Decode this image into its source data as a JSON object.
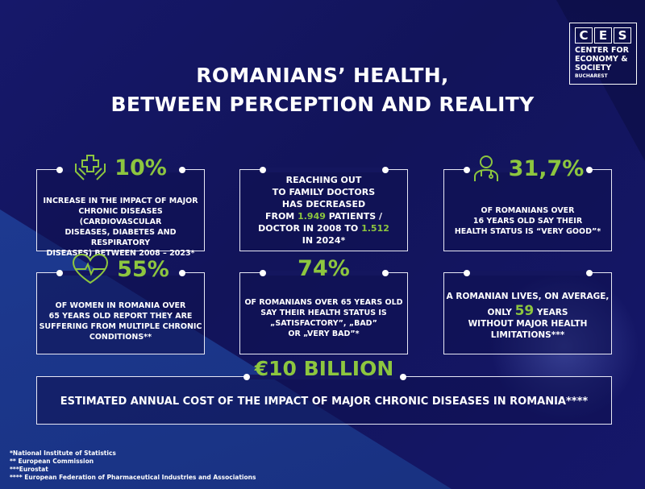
{
  "title": {
    "line1": "ROMANIANS’ HEALTH,",
    "line2": "BETWEEN PERCEPTION AND REALITY"
  },
  "logo": {
    "letters": [
      "C",
      "E",
      "S"
    ],
    "line1": "CENTER FOR",
    "line2": "ECONOMY &",
    "line3": "SOCIETY",
    "city": "BUCHAREST"
  },
  "colors": {
    "accent": "#8dc63f",
    "background": "#14165e"
  },
  "cards": [
    {
      "icon": "hands-medical-cross-icon",
      "value": "10%",
      "text": [
        "INCREASE IN THE IMPACT OF MAJOR",
        "CHRONIC DISEASES (CARDIOVASCULAR",
        "DISEASES, DIABETES AND RESPIRATORY",
        "DISEASES) BETWEEN 2008 – 2023*"
      ]
    },
    {
      "lines": [
        "REACHING OUT",
        "TO FAMILY DOCTORS",
        "HAS DECREASED"
      ],
      "from_pre": "FROM ",
      "from_val": "1.949",
      "from_post": " PATIENTS /",
      "to_pre": "DOCTOR IN 2008 TO ",
      "to_val": "1.512",
      "end": "IN 2024*"
    },
    {
      "icon": "doctor-icon",
      "value": "31,7%",
      "text": [
        "OF ROMANIANS OVER",
        "16 YEARS OLD SAY THEIR",
        "HEALTH STATUS IS “VERY GOOD”*"
      ]
    },
    {
      "icon": "heart-pulse-icon",
      "value": "55%",
      "text": [
        "OF WOMEN IN ROMANIA OVER",
        "65 YEARS OLD REPORT THEY ARE",
        "SUFFERING FROM MULTIPLE CHRONIC",
        "CONDITIONS**"
      ]
    },
    {
      "value": "74%",
      "text": [
        "OF ROMANIANS OVER 65 YEARS OLD",
        "SAY THEIR HEALTH STATUS IS",
        "„SATISFACTORY”, „BAD”",
        "OR „VERY BAD”*"
      ]
    },
    {
      "line1": "A ROMANIAN LIVES, ON AVERAGE,",
      "pre": "ONLY ",
      "value": "59",
      "post": " YEARS",
      "line3": "WITHOUT MAJOR HEALTH",
      "line4": "LIMITATIONS***"
    }
  ],
  "summary": {
    "value": "€10 BILLION",
    "text": "ESTIMATED ANNUAL COST OF THE IMPACT OF MAJOR CHRONIC DISEASES IN ROMANIA****"
  },
  "footnotes": [
    "*National Institute of Statistics",
    "** European Commission",
    "***Eurostat",
    "**** European Federation of Pharmaceutical Industries and Associations"
  ]
}
